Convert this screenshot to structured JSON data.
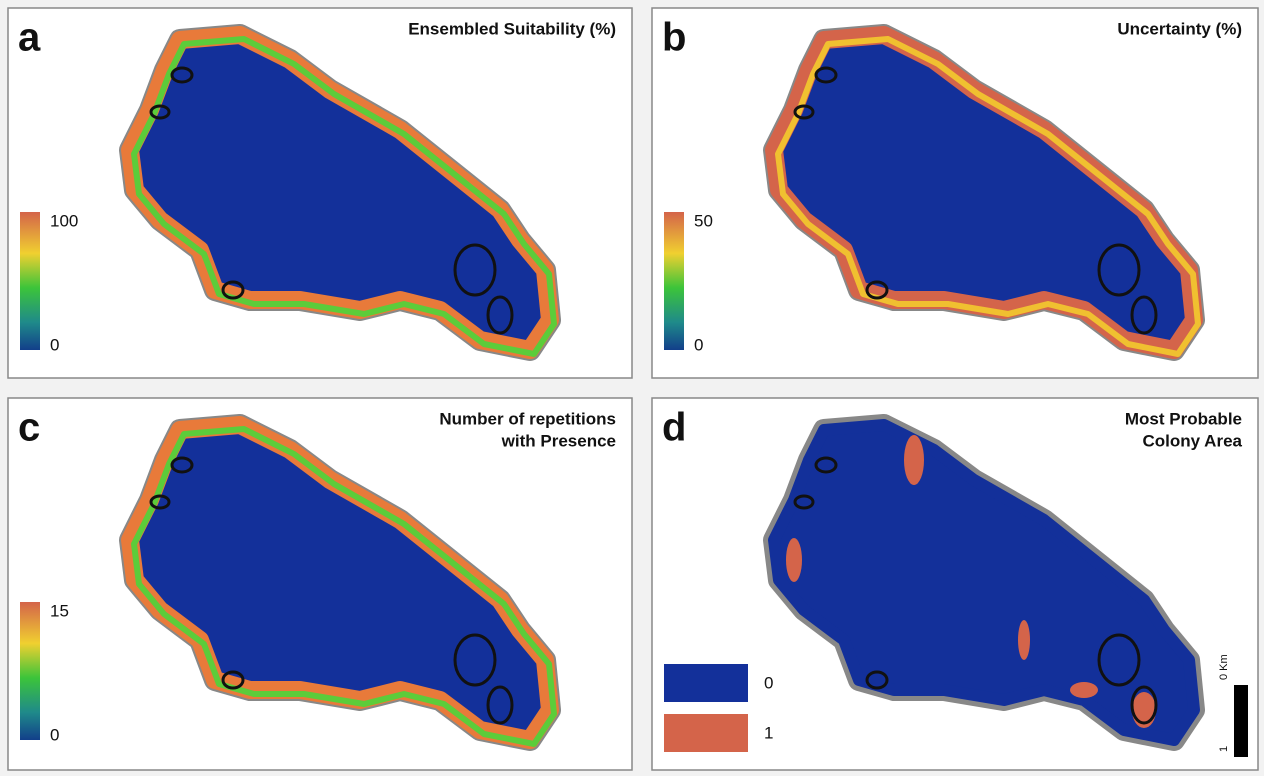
{
  "panels": [
    {
      "letter": "a",
      "title": [
        "Ensembled Suitability (%)"
      ],
      "scale": [
        100,
        0
      ]
    },
    {
      "letter": "b",
      "title": [
        "Uncertainty (%)"
      ],
      "scale": [
        50,
        0
      ]
    },
    {
      "letter": "c",
      "title": [
        "Number of repetitions",
        "with Presence"
      ],
      "scale": [
        15,
        0
      ]
    },
    {
      "letter": "d",
      "title": [
        "Most Probable",
        "Colony Area"
      ],
      "legend": [
        0,
        1
      ],
      "scalebar": [
        "0 Km",
        "1"
      ]
    }
  ]
}
